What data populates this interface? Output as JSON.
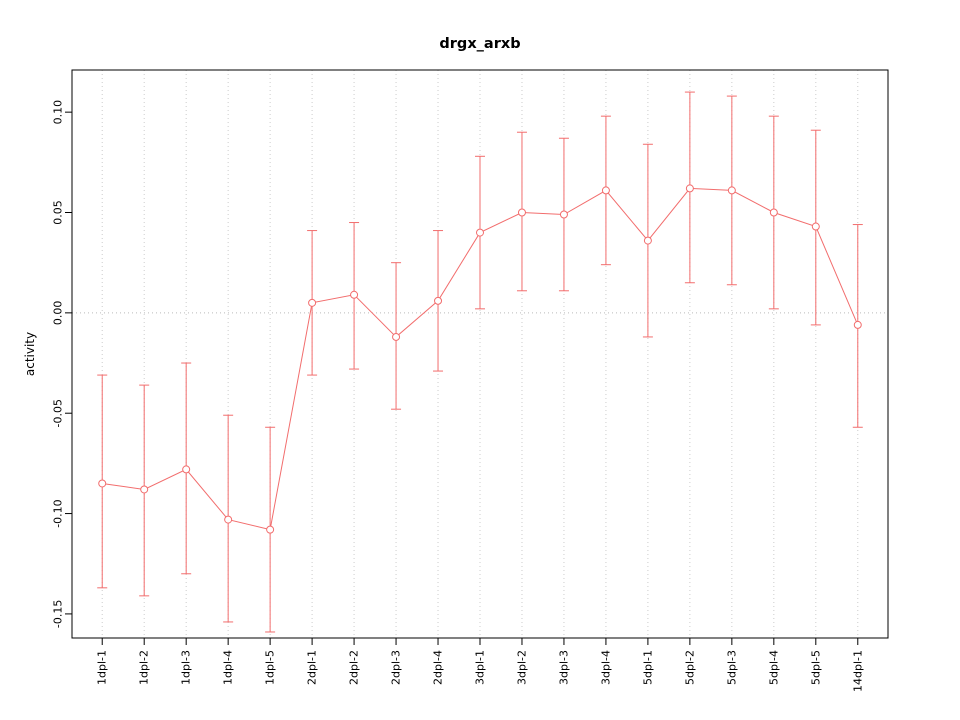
{
  "page": {
    "title": "drgx_arxb"
  },
  "chart_data": {
    "type": "line",
    "title": "drgx_arxb",
    "xlabel": "",
    "ylabel": "activity",
    "categories": [
      "1dpl-1",
      "1dpl-2",
      "1dpl-3",
      "1dpl-4",
      "1dpl-5",
      "2dpl-1",
      "2dpl-2",
      "2dpl-3",
      "2dpl-4",
      "3dpl-1",
      "3dpl-2",
      "3dpl-3",
      "3dpl-4",
      "5dpl-1",
      "5dpl-2",
      "5dpl-3",
      "5dpl-4",
      "5dpl-5",
      "14dpl-1"
    ],
    "series": [
      {
        "name": "activity",
        "values": [
          -0.085,
          -0.088,
          -0.078,
          -0.103,
          -0.108,
          0.005,
          0.009,
          -0.012,
          0.006,
          0.04,
          0.05,
          0.049,
          0.061,
          0.036,
          0.062,
          0.061,
          0.05,
          0.043,
          -0.006
        ],
        "ci_low": [
          -0.137,
          -0.141,
          -0.13,
          -0.154,
          -0.159,
          -0.031,
          -0.028,
          -0.048,
          -0.029,
          0.002,
          0.011,
          0.011,
          0.024,
          -0.012,
          0.015,
          0.014,
          0.002,
          -0.006,
          -0.057
        ],
        "ci_high": [
          -0.031,
          -0.036,
          -0.025,
          -0.051,
          -0.057,
          0.041,
          0.045,
          0.025,
          0.041,
          0.078,
          0.09,
          0.087,
          0.098,
          0.084,
          0.11,
          0.108,
          0.098,
          0.091,
          0.044
        ]
      }
    ],
    "yticks": [
      -0.15,
      -0.1,
      -0.05,
      0.0,
      0.05,
      0.1
    ],
    "ytick_labels": [
      "-0.15",
      "-0.10",
      "-0.05",
      "0.00",
      "0.05",
      "0.10"
    ],
    "ylim": [
      -0.162,
      0.121
    ],
    "grid": true,
    "zero_line": true,
    "legend": "none",
    "colors": {
      "series": "#f26d6d",
      "grid": "#cccccc",
      "zero_line": "#bbbbbb",
      "axis": "#000000",
      "point_fill": "#ffffff"
    }
  }
}
